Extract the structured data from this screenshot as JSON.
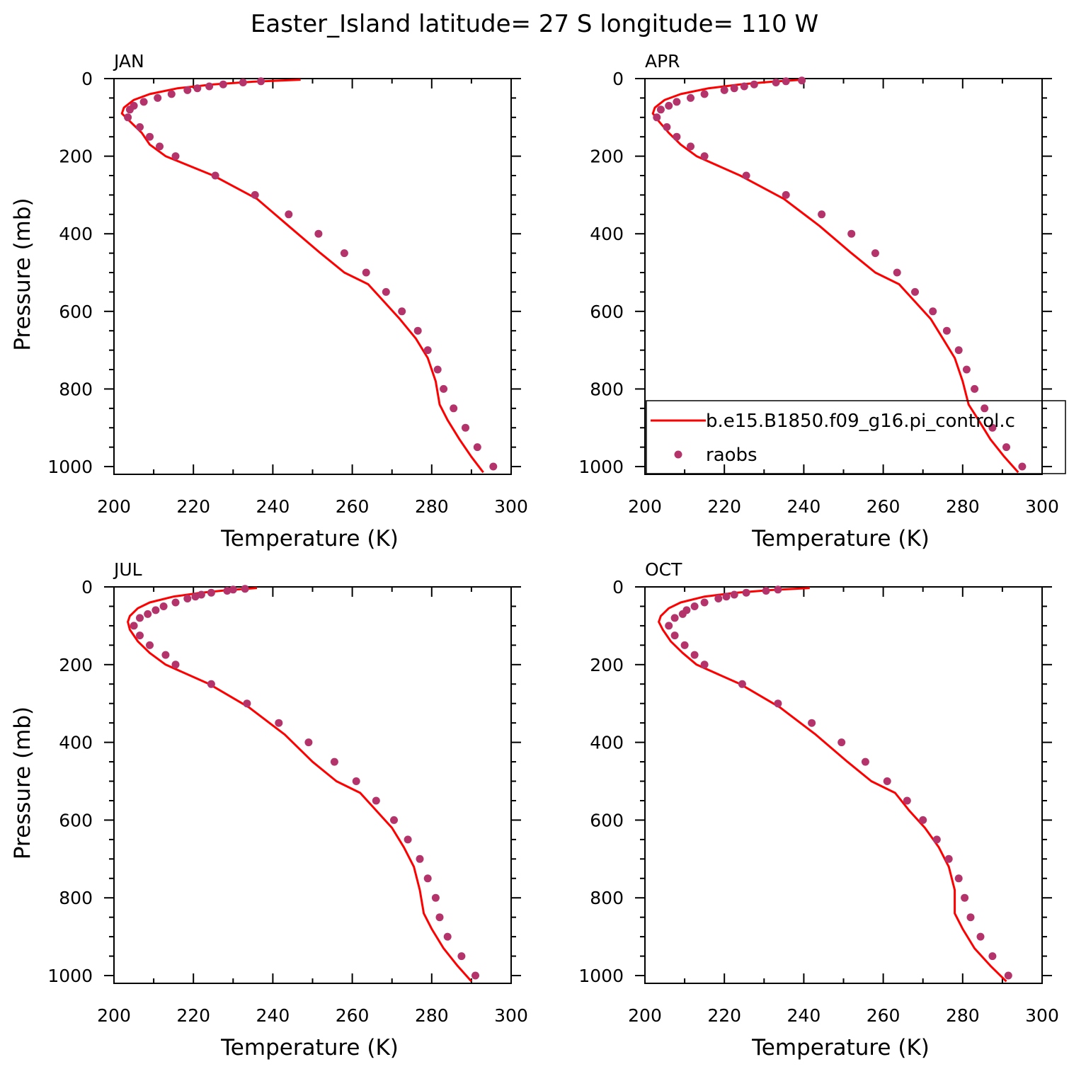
{
  "title": "Easter_Island  latitude= 27 S longitude= 110 W",
  "colors": {
    "model": "#ff0000",
    "obs": "#b5336b",
    "axes": "#000000"
  },
  "legend": {
    "panel": "APR",
    "entries": [
      {
        "label": "b.e15.B1850.f09_g16.pi_control.c",
        "style": "line",
        "color": "#ff0000"
      },
      {
        "label": "raobs",
        "style": "marker",
        "color": "#b5336b"
      }
    ]
  },
  "chart_data": [
    {
      "type": "line",
      "panel_label": "JAN",
      "xlabel": "Temperature (K)",
      "ylabel": "Pressure (mb)",
      "xlim": [
        200,
        300
      ],
      "ylim": [
        1020,
        0
      ],
      "xticks": [
        200,
        220,
        240,
        260,
        280,
        300
      ],
      "yticks": [
        0,
        200,
        400,
        600,
        800,
        1000
      ],
      "series": [
        {
          "name": "b.e15.B1850.f09_g16.pi_control.c",
          "kind": "line",
          "points": [
            [
              247,
              3
            ],
            [
              235,
              8
            ],
            [
              225,
              15
            ],
            [
              216,
              25
            ],
            [
              209,
              40
            ],
            [
              205,
              55
            ],
            [
              202.5,
              75
            ],
            [
              202,
              90
            ],
            [
              204,
              110
            ],
            [
              207,
              140
            ],
            [
              209,
              170
            ],
            [
              213,
              200
            ],
            [
              225,
              250
            ],
            [
              236,
              310
            ],
            [
              244,
              380
            ],
            [
              252,
              450
            ],
            [
              258,
              500
            ],
            [
              264,
              530
            ],
            [
              268,
              575
            ],
            [
              272,
              620
            ],
            [
              276,
              670
            ],
            [
              279,
              720
            ],
            [
              281,
              780
            ],
            [
              282,
              840
            ],
            [
              284,
              880
            ],
            [
              287,
              930
            ],
            [
              290,
              975
            ],
            [
              293,
              1015
            ]
          ]
        },
        {
          "name": "raobs",
          "kind": "scatter",
          "points": [
            [
              237,
              7
            ],
            [
              232.5,
              10
            ],
            [
              227.5,
              15
            ],
            [
              224,
              20
            ],
            [
              221,
              25
            ],
            [
              218.5,
              30
            ],
            [
              214.5,
              40
            ],
            [
              211,
              50
            ],
            [
              207.5,
              60
            ],
            [
              205,
              70
            ],
            [
              204,
              80
            ],
            [
              203.5,
              100
            ],
            [
              206.5,
              125
            ],
            [
              209,
              150
            ],
            [
              211.5,
              175
            ],
            [
              215.5,
              200
            ],
            [
              225.5,
              250
            ],
            [
              235.5,
              300
            ],
            [
              244,
              350
            ],
            [
              251.5,
              400
            ],
            [
              258,
              450
            ],
            [
              263.5,
              500
            ],
            [
              268.5,
              550
            ],
            [
              272.5,
              600
            ],
            [
              276.5,
              650
            ],
            [
              279,
              700
            ],
            [
              281.5,
              750
            ],
            [
              283,
              800
            ],
            [
              285.5,
              850
            ],
            [
              288.5,
              900
            ],
            [
              291.5,
              950
            ],
            [
              295.5,
              1000
            ]
          ]
        }
      ]
    },
    {
      "type": "line",
      "panel_label": "APR",
      "xlabel": "Temperature (K)",
      "ylabel": "",
      "xlim": [
        200,
        300
      ],
      "ylim": [
        1020,
        0
      ],
      "xticks": [
        200,
        220,
        240,
        260,
        280,
        300
      ],
      "yticks": [
        0,
        200,
        400,
        600,
        800,
        1000
      ],
      "series": [
        {
          "name": "b.e15.B1850.f09_g16.pi_control.c",
          "kind": "line",
          "points": [
            [
              239.5,
              3
            ],
            [
              232,
              8
            ],
            [
              224,
              15
            ],
            [
              216,
              25
            ],
            [
              209,
              40
            ],
            [
              205,
              55
            ],
            [
              202.5,
              75
            ],
            [
              202,
              90
            ],
            [
              203.5,
              110
            ],
            [
              206,
              140
            ],
            [
              209,
              170
            ],
            [
              213,
              200
            ],
            [
              224,
              250
            ],
            [
              235,
              310
            ],
            [
              244,
              380
            ],
            [
              252,
              450
            ],
            [
              258,
              500
            ],
            [
              264,
              530
            ],
            [
              268,
              575
            ],
            [
              272,
              620
            ],
            [
              275,
              670
            ],
            [
              278,
              720
            ],
            [
              280,
              780
            ],
            [
              281.5,
              840
            ],
            [
              284,
              880
            ],
            [
              287,
              930
            ],
            [
              290.5,
              975
            ],
            [
              294,
              1015
            ]
          ]
        },
        {
          "name": "raobs",
          "kind": "scatter",
          "points": [
            [
              239.5,
              5
            ],
            [
              235.5,
              7
            ],
            [
              233,
              10
            ],
            [
              227.5,
              15
            ],
            [
              225,
              20
            ],
            [
              222.5,
              25
            ],
            [
              220,
              30
            ],
            [
              215,
              40
            ],
            [
              211.5,
              50
            ],
            [
              208,
              60
            ],
            [
              206,
              70
            ],
            [
              204,
              80
            ],
            [
              203,
              100
            ],
            [
              205.5,
              125
            ],
            [
              208,
              150
            ],
            [
              211.5,
              175
            ],
            [
              215,
              200
            ],
            [
              225.5,
              250
            ],
            [
              235.5,
              300
            ],
            [
              244.5,
              350
            ],
            [
              252,
              400
            ],
            [
              258,
              450
            ],
            [
              263.5,
              500
            ],
            [
              268,
              550
            ],
            [
              272.5,
              600
            ],
            [
              276,
              650
            ],
            [
              279,
              700
            ],
            [
              281,
              750
            ],
            [
              283,
              800
            ],
            [
              285.5,
              850
            ],
            [
              287.5,
              900
            ],
            [
              291,
              950
            ],
            [
              295,
              1000
            ]
          ]
        }
      ]
    },
    {
      "type": "line",
      "panel_label": "JUL",
      "xlabel": "Temperature (K)",
      "ylabel": "Pressure (mb)",
      "xlim": [
        200,
        300
      ],
      "ylim": [
        1020,
        0
      ],
      "xticks": [
        200,
        220,
        240,
        260,
        280,
        300
      ],
      "yticks": [
        0,
        200,
        400,
        600,
        800,
        1000
      ],
      "series": [
        {
          "name": "b.e15.B1850.f09_g16.pi_control.c",
          "kind": "line",
          "points": [
            [
              236,
              3
            ],
            [
              229,
              8
            ],
            [
              222,
              15
            ],
            [
              215,
              25
            ],
            [
              209,
              40
            ],
            [
              206,
              55
            ],
            [
              204,
              75
            ],
            [
              203.5,
              90
            ],
            [
              204,
              110
            ],
            [
              206,
              140
            ],
            [
              209,
              170
            ],
            [
              213,
              200
            ],
            [
              224,
              250
            ],
            [
              234,
              310
            ],
            [
              243,
              380
            ],
            [
              250,
              450
            ],
            [
              256,
              500
            ],
            [
              262,
              530
            ],
            [
              266,
              575
            ],
            [
              270,
              620
            ],
            [
              273,
              670
            ],
            [
              275.5,
              720
            ],
            [
              277,
              780
            ],
            [
              278,
              840
            ],
            [
              280,
              880
            ],
            [
              283,
              930
            ],
            [
              286.5,
              975
            ],
            [
              290,
              1015
            ]
          ]
        },
        {
          "name": "raobs",
          "kind": "scatter",
          "points": [
            [
              233,
              5
            ],
            [
              230,
              7
            ],
            [
              228.5,
              10
            ],
            [
              224.5,
              15
            ],
            [
              222,
              20
            ],
            [
              220.5,
              25
            ],
            [
              218.5,
              30
            ],
            [
              215.5,
              40
            ],
            [
              212.5,
              50
            ],
            [
              210.5,
              60
            ],
            [
              208.5,
              70
            ],
            [
              206.5,
              80
            ],
            [
              205,
              100
            ],
            [
              206.5,
              125
            ],
            [
              209,
              150
            ],
            [
              213,
              175
            ],
            [
              215.5,
              200
            ],
            [
              224.5,
              250
            ],
            [
              233.5,
              300
            ],
            [
              241.5,
              350
            ],
            [
              249,
              400
            ],
            [
              255.5,
              450
            ],
            [
              261,
              500
            ],
            [
              266,
              550
            ],
            [
              270.5,
              600
            ],
            [
              274,
              650
            ],
            [
              277,
              700
            ],
            [
              279,
              750
            ],
            [
              281,
              800
            ],
            [
              282,
              850
            ],
            [
              284,
              900
            ],
            [
              287.5,
              950
            ],
            [
              291,
              1000
            ]
          ]
        }
      ]
    },
    {
      "type": "line",
      "panel_label": "OCT",
      "xlabel": "Temperature (K)",
      "ylabel": "",
      "xlim": [
        200,
        300
      ],
      "ylim": [
        1020,
        0
      ],
      "xticks": [
        200,
        220,
        240,
        260,
        280,
        300
      ],
      "yticks": [
        0,
        200,
        400,
        600,
        800,
        1000
      ],
      "series": [
        {
          "name": "b.e15.B1850.f09_g16.pi_control.c",
          "kind": "line",
          "points": [
            [
              241.5,
              3
            ],
            [
              232,
              8
            ],
            [
              223,
              15
            ],
            [
              215,
              25
            ],
            [
              209,
              40
            ],
            [
              206,
              55
            ],
            [
              204,
              75
            ],
            [
              203.5,
              90
            ],
            [
              204.5,
              110
            ],
            [
              206.5,
              140
            ],
            [
              209.5,
              170
            ],
            [
              213,
              200
            ],
            [
              224,
              250
            ],
            [
              234,
              310
            ],
            [
              243,
              380
            ],
            [
              251,
              450
            ],
            [
              257,
              500
            ],
            [
              263,
              530
            ],
            [
              266.5,
              575
            ],
            [
              270.5,
              620
            ],
            [
              274,
              670
            ],
            [
              276.5,
              720
            ],
            [
              278,
              780
            ],
            [
              278,
              840
            ],
            [
              280,
              880
            ],
            [
              283,
              930
            ],
            [
              287,
              975
            ],
            [
              291,
              1015
            ]
          ]
        },
        {
          "name": "raobs",
          "kind": "scatter",
          "points": [
            [
              233.5,
              7
            ],
            [
              230.5,
              10
            ],
            [
              225.5,
              15
            ],
            [
              222.5,
              20
            ],
            [
              220.5,
              25
            ],
            [
              218.5,
              30
            ],
            [
              215,
              40
            ],
            [
              212.5,
              50
            ],
            [
              210.5,
              60
            ],
            [
              209.5,
              70
            ],
            [
              207.5,
              80
            ],
            [
              206,
              100
            ],
            [
              207.5,
              125
            ],
            [
              210,
              150
            ],
            [
              212.5,
              175
            ],
            [
              215,
              200
            ],
            [
              224.5,
              250
            ],
            [
              233.5,
              300
            ],
            [
              242,
              350
            ],
            [
              249.5,
              400
            ],
            [
              255.5,
              450
            ],
            [
              261,
              500
            ],
            [
              266,
              550
            ],
            [
              270,
              600
            ],
            [
              273.5,
              650
            ],
            [
              276.5,
              700
            ],
            [
              279,
              750
            ],
            [
              280.5,
              800
            ],
            [
              282,
              850
            ],
            [
              284.5,
              900
            ],
            [
              287.5,
              950
            ],
            [
              291.5,
              1000
            ]
          ]
        }
      ]
    }
  ]
}
